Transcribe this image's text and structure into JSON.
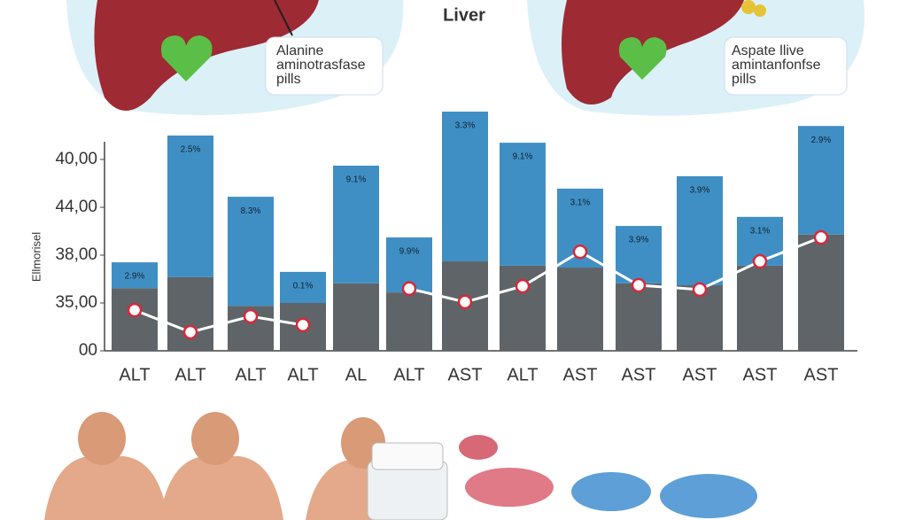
{
  "labels": {
    "liver": "Liver",
    "left_note": "Alanine\naminotrasfase\npills",
    "right_note": "Aspate llive\namintanfonfse\npills"
  },
  "chart_data": {
    "type": "bar",
    "stacked": true,
    "y_label": "Ellmorisel",
    "categories": [
      "ALT",
      "ALT",
      "ALT",
      "ALT",
      "AL",
      "ALT",
      "AST",
      "ALT",
      "AST",
      "AST",
      "AST",
      "AST",
      "AST"
    ],
    "series": [
      {
        "type": "bar",
        "color": "#5f6468",
        "values": [
          1.31,
          1.54,
          0.94,
          1.0,
          1.41,
          1.22,
          1.87,
          1.78,
          1.74,
          1.41,
          1.37,
          1.78,
          2.43
        ]
      },
      {
        "type": "bar",
        "color": "#3f8fc4",
        "values": [
          0.54,
          2.96,
          2.28,
          0.65,
          2.46,
          1.15,
          3.13,
          2.57,
          1.65,
          1.2,
          2.28,
          1.02,
          2.27
        ]
      },
      {
        "type": "line",
        "color": "#ffffff",
        "marker_color": "#d8283a",
        "values": [
          0.85,
          0.39,
          0.72,
          0.54,
          null,
          1.3,
          1.02,
          1.35,
          2.07,
          1.37,
          1.28,
          1.87,
          2.37
        ]
      }
    ],
    "bar_annotations": [
      "2.9%",
      "2.5%",
      "8.3%",
      "0.1%",
      "9.1%",
      "9.9%",
      "3.3%",
      "9.1%",
      "3.1%",
      "3.9%",
      "3.9%",
      "3.1%",
      "2.9%"
    ],
    "ylim": [
      0,
      5
    ],
    "yticks": [
      {
        "value": 0,
        "label": "00"
      },
      {
        "value": 1,
        "label": "35,00"
      },
      {
        "value": 2,
        "label": "38,00"
      },
      {
        "value": 3,
        "label": "44,00"
      },
      {
        "value": 4,
        "label": "40,00"
      }
    ]
  }
}
